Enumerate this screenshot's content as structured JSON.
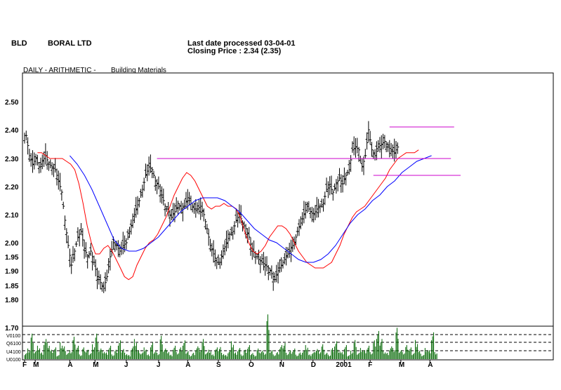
{
  "header": {
    "symbol": "BLD",
    "company": "BORAL LTD",
    "last_date": "Last date processed 03-04-01",
    "closing": "Closing Price : 2.34  (2.35)",
    "chart_mode": "DAILY  -  ARITHMETIC  -",
    "sector": "Building Materials"
  },
  "colors": {
    "price_bars": "#000000",
    "ma_short": "#ff0000",
    "ma_long": "#0000ff",
    "trendlines": "#cc00cc",
    "volume": "#006600",
    "grid": "#000000"
  },
  "chart_data": {
    "type": "line",
    "title": "",
    "xlabel": "",
    "ylabel": "",
    "ylim": [
      1.775,
      2.55
    ],
    "y_ticks": [
      "2.50",
      "2.40",
      "2.30",
      "2.20",
      "2.10",
      "2.00",
      "1.95",
      "1.90",
      "1.85",
      "1.80",
      "1.70"
    ],
    "x_ticks": [
      "F",
      "M",
      "A",
      "M",
      "J",
      "J",
      "A",
      "S",
      "O",
      "N",
      "D",
      "2001",
      "F",
      "M",
      "A"
    ],
    "x_tick_weeks": [
      0,
      3.3,
      14,
      21.8,
      31.5,
      41.5,
      50.5,
      60,
      70,
      79.5,
      89.3,
      99,
      107,
      116.5,
      125.5
    ],
    "series": [
      {
        "type": "ohlc",
        "weekly_close": [
          2.38,
          2.31,
          2.28,
          2.3,
          2.27,
          2.29,
          2.31,
          2.28,
          2.27,
          2.26,
          2.22,
          2.18,
          2.08,
          1.99,
          1.92,
          1.97,
          2.02,
          2.04,
          1.98,
          1.95,
          1.97,
          1.93,
          1.88,
          1.86,
          1.84,
          1.88,
          1.95,
          2.0,
          1.99,
          1.97,
          1.99,
          2.0,
          2.04,
          2.08,
          2.12,
          2.15,
          2.19,
          2.24,
          2.27,
          2.26,
          2.22,
          2.2,
          2.17,
          2.13,
          2.11,
          2.09,
          2.11,
          2.14,
          2.12,
          2.13,
          2.16,
          2.14,
          2.12,
          2.12,
          2.13,
          2.1,
          2.05,
          1.99,
          1.96,
          1.93,
          1.93,
          1.97,
          2.0,
          2.03,
          2.04,
          2.08,
          2.1,
          2.07,
          2.05,
          2.02,
          1.97,
          1.96,
          1.94,
          1.93,
          1.92,
          1.91,
          1.89,
          1.87,
          1.9,
          1.92,
          1.94,
          1.96,
          1.98,
          2.0,
          2.04,
          2.07,
          2.1,
          2.13,
          2.11,
          2.1,
          2.12,
          2.13,
          2.14,
          2.19,
          2.2,
          2.18,
          2.21,
          2.23,
          2.21,
          2.24,
          2.26,
          2.33,
          2.34,
          2.33,
          2.27,
          2.31,
          2.4,
          2.33,
          2.31,
          2.34,
          2.35,
          2.36,
          2.34,
          2.33,
          2.32,
          2.34
        ]
      },
      {
        "name": "",
        "role": "short moving average",
        "values": [
          2.32,
          2.32,
          2.31,
          2.3,
          2.3,
          2.3,
          2.3,
          2.29,
          2.28,
          2.26,
          2.21,
          2.14,
          2.06,
          2.0,
          1.96,
          1.96,
          1.98,
          1.99,
          1.97,
          1.94,
          1.91,
          1.88,
          1.87,
          1.88,
          1.92,
          1.95,
          1.98,
          2.0,
          2.01,
          2.03,
          2.06,
          2.09,
          2.13,
          2.17,
          2.2,
          2.23,
          2.25,
          2.24,
          2.22,
          2.19,
          2.16,
          2.13,
          2.12,
          2.13,
          2.13,
          2.14,
          2.13,
          2.13,
          2.12,
          2.09,
          2.04,
          2.0,
          1.97,
          1.96,
          1.97,
          1.99,
          2.02,
          2.04,
          2.06,
          2.06,
          2.05,
          2.03,
          2.0,
          1.97,
          1.95,
          1.93,
          1.92,
          1.91,
          1.91,
          1.91,
          1.92,
          1.93,
          1.96,
          1.99,
          2.03,
          2.06,
          2.09,
          2.11,
          2.12,
          2.13,
          2.15,
          2.17,
          2.19,
          2.21,
          2.23,
          2.26,
          2.28,
          2.3,
          2.31,
          2.32,
          2.32,
          2.32,
          2.33
        ]
      },
      {
        "name": "",
        "role": "long moving average",
        "values": [
          2.31,
          2.28,
          2.24,
          2.19,
          2.13,
          2.07,
          2.01,
          1.98,
          1.97,
          1.97,
          1.98,
          2.0,
          2.02,
          2.05,
          2.08,
          2.11,
          2.13,
          2.15,
          2.16,
          2.16,
          2.16,
          2.15,
          2.13,
          2.11,
          2.08,
          2.05,
          2.03,
          2.01,
          2.0,
          1.98,
          1.96,
          1.94,
          1.93,
          1.93,
          1.94,
          1.96,
          1.99,
          2.03,
          2.07,
          2.1,
          2.12,
          2.15,
          2.17,
          2.2,
          2.22,
          2.25,
          2.27,
          2.29,
          2.3,
          2.31
        ]
      }
    ],
    "volume": {
      "ytick_labels": [
        "V0100",
        "Q6100",
        "U4100",
        "U0100"
      ],
      "bars": [
        3,
        5,
        12,
        4,
        6,
        3,
        9,
        7,
        4,
        5,
        2,
        8,
        6,
        3,
        4,
        10,
        6,
        2,
        5,
        4,
        3,
        7,
        12,
        5,
        4,
        3,
        6,
        2,
        4,
        8,
        5,
        3,
        2,
        6,
        9,
        4,
        3,
        5,
        2,
        7,
        4,
        3,
        11,
        5,
        4,
        2,
        6,
        3,
        5,
        8,
        4,
        2,
        3,
        6,
        5,
        9,
        3,
        4,
        2,
        5,
        6,
        3,
        2,
        4,
        8,
        3,
        5,
        2,
        4,
        6,
        3,
        2,
        5,
        4,
        3,
        20,
        4,
        2,
        3,
        6,
        8,
        3,
        4,
        5,
        2,
        3,
        4,
        6,
        2,
        3,
        5,
        4,
        7,
        3,
        2,
        5,
        8,
        4,
        3,
        6,
        2,
        4,
        9,
        3,
        5,
        4,
        6,
        3,
        8,
        12,
        10,
        4,
        3,
        6,
        5,
        14,
        4,
        3,
        6,
        5,
        3,
        9,
        4,
        2,
        5,
        4,
        12,
        3
      ]
    },
    "trendlines": [
      {
        "from_week": 41,
        "to_week": 132,
        "y": 2.3
      },
      {
        "from_week": 113,
        "to_week": 133,
        "y": 2.41
      },
      {
        "from_week": 108,
        "to_week": 135,
        "y": 2.24
      }
    ]
  }
}
